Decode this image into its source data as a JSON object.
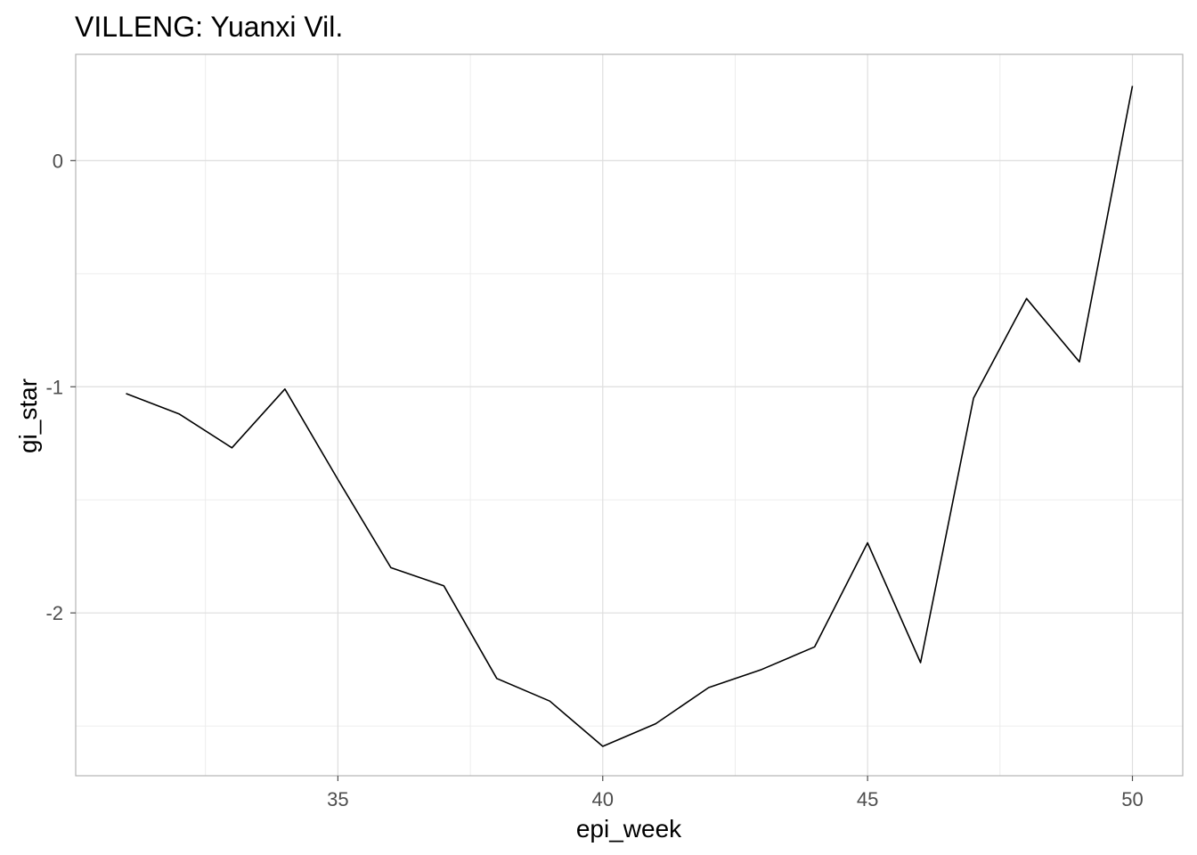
{
  "chart_data": {
    "type": "line",
    "title": "VILLENG: Yuanxi Vil.",
    "xlabel": "epi_week",
    "ylabel": "gi_star",
    "x": [
      31,
      32,
      33,
      34,
      35,
      36,
      37,
      38,
      39,
      40,
      41,
      42,
      43,
      44,
      45,
      46,
      47,
      48,
      49,
      50
    ],
    "y": [
      -1.03,
      -1.12,
      -1.27,
      -1.01,
      -1.41,
      -1.8,
      -1.88,
      -2.29,
      -2.39,
      -2.59,
      -2.49,
      -2.33,
      -2.25,
      -2.15,
      -1.69,
      -2.22,
      -1.05,
      -0.61,
      -0.89,
      0.33
    ],
    "xticks": [
      35,
      40,
      45,
      50
    ],
    "yticks": [
      -2,
      -1,
      0
    ],
    "xlim": [
      30.05,
      50.95
    ],
    "ylim": [
      -2.72,
      0.47
    ],
    "grid": true,
    "colors": {
      "line": "#000000",
      "grid": "#dedede",
      "border": "#b3b3b3"
    }
  }
}
